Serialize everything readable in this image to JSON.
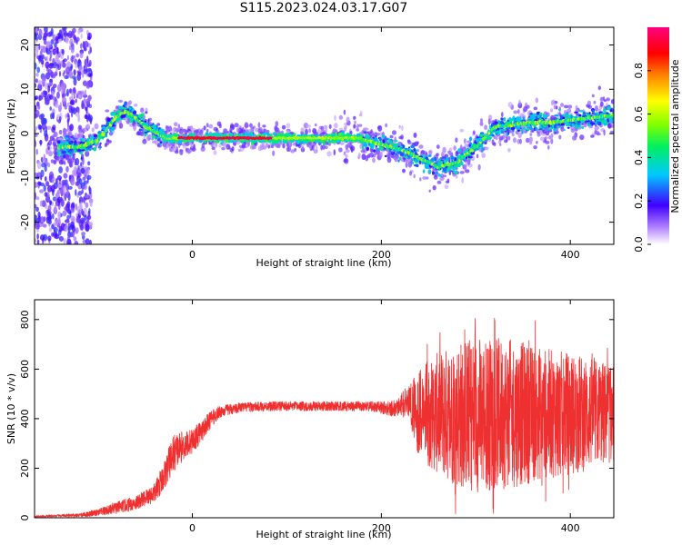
{
  "figure": {
    "title": "S115.2023.024.03.17.G07"
  },
  "chart_data": [
    {
      "type": "heatmap",
      "xlabel": "Height of straight line (km)",
      "ylabel": "Frequency (Hz)",
      "xlim": [
        -167,
        446
      ],
      "ylim": [
        -25,
        24
      ],
      "xticks": [
        0,
        200,
        400
      ],
      "yticks": [
        -20,
        -10,
        0,
        10,
        20
      ],
      "frequency_ridge": {
        "x": [
          -160,
          -140,
          -120,
          -100,
          -90,
          -80,
          -70,
          -60,
          -50,
          -40,
          -30,
          -20,
          0,
          50,
          100,
          150,
          175,
          200,
          220,
          240,
          260,
          280,
          300,
          320,
          340,
          360,
          380,
          400,
          420,
          446
        ],
        "y": [
          -3,
          -3,
          -3,
          -1.5,
          1,
          4,
          5,
          3.5,
          1.5,
          0.5,
          -1,
          -1,
          -1,
          -1,
          -1,
          -1,
          -1,
          -2.5,
          -3.5,
          -5.5,
          -7.5,
          -6.5,
          -3,
          1.5,
          2,
          2.5,
          2.5,
          3,
          3.5,
          4
        ]
      },
      "colorbar": {
        "label": "Normalized spectral amplitude",
        "range": [
          0,
          1
        ],
        "ticks": [
          0.0,
          0.2,
          0.4,
          0.6,
          0.8
        ],
        "colormap": "hsv (violet-blue-cyan-green-yellow-red-magenta)"
      },
      "grid": false
    },
    {
      "type": "line",
      "xlabel": "Height of straight line (km)",
      "ylabel": "SNR (10 * v/v)",
      "xlim": [
        -167,
        446
      ],
      "ylim": [
        0,
        880
      ],
      "xticks": [
        0,
        200,
        400
      ],
      "yticks": [
        0,
        200,
        400,
        600,
        800
      ],
      "color": "#ee3030",
      "series": [
        {
          "x": [
            -167,
            -140,
            -120,
            -100,
            -80,
            -60,
            -50,
            -40,
            -30,
            -20,
            -10,
            0,
            10,
            20,
            30,
            50,
            80,
            100,
            130,
            150,
            180,
            200,
            215,
            220,
            230,
            240,
            260,
            280,
            300,
            320,
            340,
            360,
            380,
            400,
            420,
            446
          ],
          "y": [
            5,
            8,
            10,
            20,
            40,
            60,
            80,
            100,
            170,
            260,
            290,
            310,
            350,
            400,
            430,
            445,
            450,
            450,
            450,
            450,
            450,
            445,
            440,
            455,
            470,
            420,
            420,
            420,
            420,
            420,
            420,
            420,
            420,
            420,
            420,
            420
          ],
          "noise_band": {
            "x": [
              -167,
              -140,
              -120,
              -100,
              -80,
              -60,
              -50,
              -40,
              -30,
              -20,
              -10,
              0,
              10,
              20,
              30,
              50,
              80,
              100,
              130,
              150,
              180,
              200,
              215,
              220,
              230,
              240,
              260,
              280,
              300,
              320,
              340,
              360,
              380,
              400,
              420,
              446
            ],
            "half_width": [
              3,
              5,
              8,
              15,
              25,
              30,
              35,
              40,
              60,
              80,
              60,
              50,
              45,
              35,
              25,
              20,
              20,
              20,
              20,
              20,
              20,
              25,
              35,
              40,
              90,
              180,
              250,
              300,
              320,
              310,
              300,
              280,
              260,
              250,
              230,
              200
            ]
          }
        }
      ],
      "grid": false
    }
  ]
}
